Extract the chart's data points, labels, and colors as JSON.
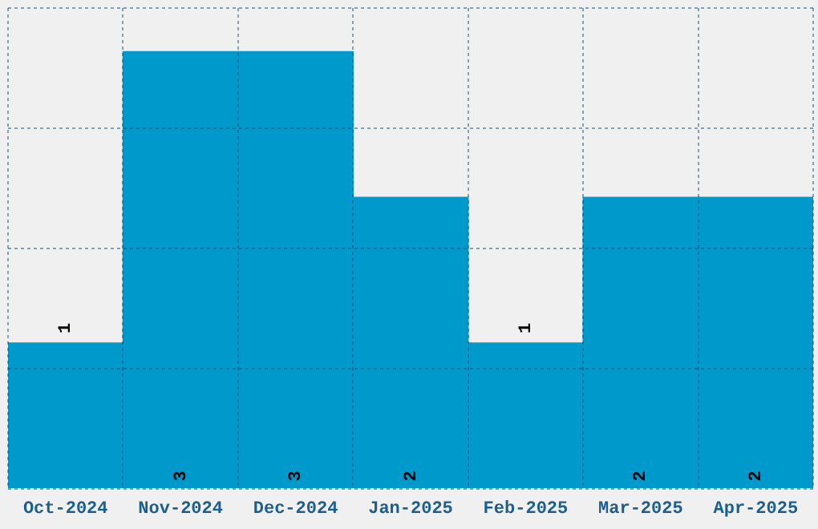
{
  "chart_data": {
    "type": "bar",
    "categories": [
      "Oct-2024",
      "Nov-2024",
      "Dec-2024",
      "Jan-2025",
      "Feb-2025",
      "Mar-2025",
      "Apr-2025"
    ],
    "values": [
      1,
      3,
      3,
      2,
      1,
      2,
      2
    ],
    "color": "#0099cc",
    "data_labels": true,
    "ylim": [
      0,
      3.3
    ],
    "yticks": [
      {
        "value": 0,
        "label": null
      },
      {
        "value": 0.825,
        "label": null
      },
      {
        "value": 1.65,
        "label": null
      },
      {
        "value": 2.475,
        "label": null
      },
      {
        "value": 3.3,
        "label": null
      }
    ],
    "grid": true,
    "tick_labels": "x"
  }
}
